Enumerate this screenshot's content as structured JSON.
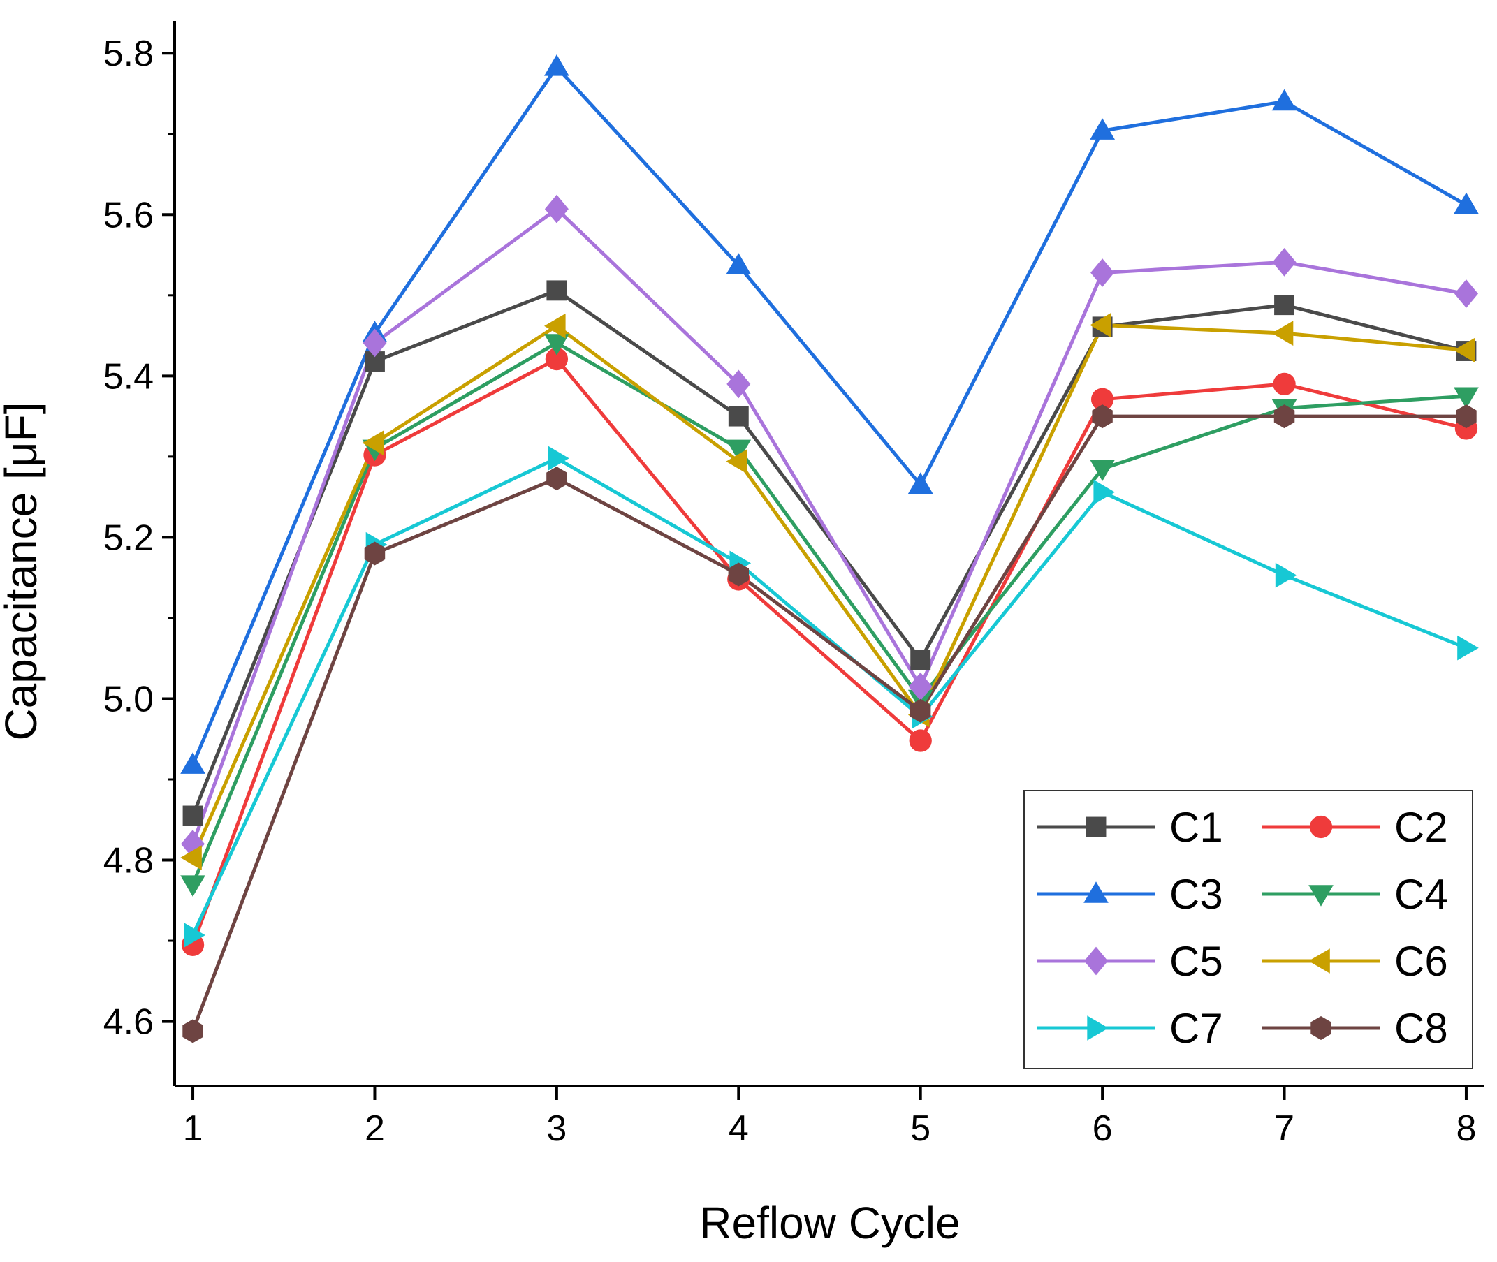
{
  "chart_data": {
    "type": "line",
    "title": "",
    "xlabel": "Reflow Cycle",
    "ylabel": "Capacitance [μF]",
    "x": [
      1,
      2,
      3,
      4,
      5,
      6,
      7,
      8
    ],
    "x_tick_labels": [
      "1",
      "2",
      "3",
      "4",
      "5",
      "6",
      "7",
      "8"
    ],
    "xlim": [
      0.9,
      8.1
    ],
    "ylim": [
      4.52,
      5.84
    ],
    "y_ticks": [
      4.6,
      4.8,
      5.0,
      5.2,
      5.4,
      5.6,
      5.8
    ],
    "y_tick_labels": [
      "4.6",
      "4.8",
      "5.0",
      "5.2",
      "5.4",
      "5.6",
      "5.8"
    ],
    "legend_position": "bottom-right",
    "series": [
      {
        "name": "C1",
        "color": "#4a4a4a",
        "marker": "square",
        "values": [
          4.855,
          5.418,
          5.506,
          5.35,
          5.048,
          5.461,
          5.488,
          5.431
        ]
      },
      {
        "name": "C2",
        "color": "#ef3b3b",
        "marker": "circle",
        "values": [
          4.695,
          5.302,
          5.421,
          5.148,
          4.948,
          5.371,
          5.39,
          5.335
        ]
      },
      {
        "name": "C3",
        "color": "#1f6fde",
        "marker": "triangle-up",
        "values": [
          4.918,
          5.453,
          5.783,
          5.537,
          5.265,
          5.704,
          5.74,
          5.612
        ]
      },
      {
        "name": "C4",
        "color": "#2e9e62",
        "marker": "triangle-down",
        "values": [
          4.77,
          5.31,
          5.441,
          5.31,
          5.0,
          5.285,
          5.36,
          5.375
        ]
      },
      {
        "name": "C5",
        "color": "#a974db",
        "marker": "diamond",
        "values": [
          4.82,
          5.441,
          5.607,
          5.39,
          5.015,
          5.528,
          5.541,
          5.502
        ]
      },
      {
        "name": "C6",
        "color": "#c9a000",
        "marker": "triangle-left",
        "values": [
          4.803,
          5.317,
          5.462,
          5.294,
          4.98,
          5.463,
          5.453,
          5.432
        ]
      },
      {
        "name": "C7",
        "color": "#17c8d4",
        "marker": "triangle-right",
        "values": [
          4.707,
          5.191,
          5.298,
          5.168,
          4.978,
          5.256,
          5.153,
          5.063
        ]
      },
      {
        "name": "C8",
        "color": "#6e4442",
        "marker": "hexagon",
        "values": [
          4.588,
          5.18,
          5.273,
          5.154,
          4.985,
          5.35,
          5.35,
          5.35
        ]
      }
    ]
  }
}
